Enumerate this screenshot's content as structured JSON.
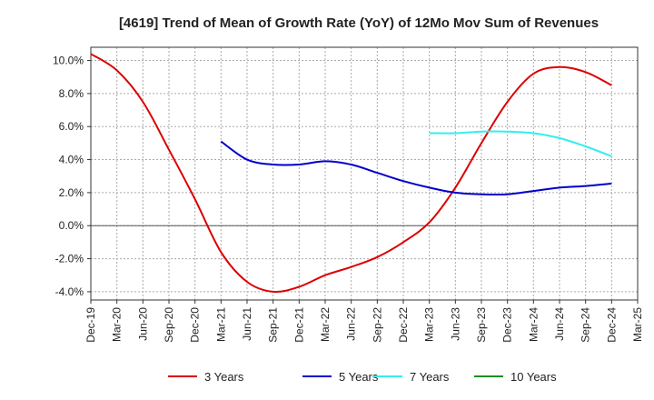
{
  "chart_data": {
    "type": "line",
    "title": "[4619]  Trend of Mean of Growth Rate (YoY) of 12Mo Mov Sum of Revenues",
    "xlabel": "",
    "ylabel": "",
    "ylim": [
      -4.5,
      10.8
    ],
    "y_ticks": [
      -4.0,
      -2.0,
      0.0,
      2.0,
      4.0,
      6.0,
      8.0,
      10.0
    ],
    "y_tick_labels": [
      "-4.0%",
      "-2.0%",
      "0.0%",
      "2.0%",
      "4.0%",
      "6.0%",
      "8.0%",
      "10.0%"
    ],
    "categories": [
      "Dec-19",
      "Mar-20",
      "Jun-20",
      "Sep-20",
      "Dec-20",
      "Mar-21",
      "Jun-21",
      "Sep-21",
      "Dec-21",
      "Mar-22",
      "Jun-22",
      "Sep-22",
      "Dec-22",
      "Mar-23",
      "Jun-23",
      "Sep-23",
      "Dec-23",
      "Mar-24",
      "Jun-24",
      "Sep-24",
      "Dec-24",
      "Mar-25"
    ],
    "grid": true,
    "legend_position": "bottom",
    "series": [
      {
        "name": "3 Years",
        "color": "#dd0000",
        "values": [
          10.4,
          9.4,
          7.5,
          4.6,
          1.6,
          -1.6,
          -3.4,
          -4.0,
          -3.7,
          -3.0,
          -2.5,
          -1.9,
          -1.0,
          0.2,
          2.3,
          5.0,
          7.5,
          9.2,
          9.6,
          9.3,
          8.5,
          null
        ]
      },
      {
        "name": "5 Years",
        "color": "#0000cc",
        "values": [
          null,
          null,
          null,
          null,
          null,
          5.1,
          4.0,
          3.7,
          3.7,
          3.9,
          3.7,
          3.2,
          2.7,
          2.3,
          2.0,
          1.9,
          1.9,
          2.1,
          2.3,
          2.4,
          2.55,
          null
        ]
      },
      {
        "name": "7 Years",
        "color": "#33eeee",
        "values": [
          null,
          null,
          null,
          null,
          null,
          null,
          null,
          null,
          null,
          null,
          null,
          null,
          null,
          5.6,
          5.6,
          5.7,
          5.7,
          5.6,
          5.3,
          4.8,
          4.2,
          null
        ]
      },
      {
        "name": "10 Years",
        "color": "#228b22",
        "values": [
          null,
          null,
          null,
          null,
          null,
          null,
          null,
          null,
          null,
          null,
          null,
          null,
          null,
          null,
          null,
          null,
          null,
          null,
          null,
          null,
          null,
          null
        ]
      }
    ]
  }
}
